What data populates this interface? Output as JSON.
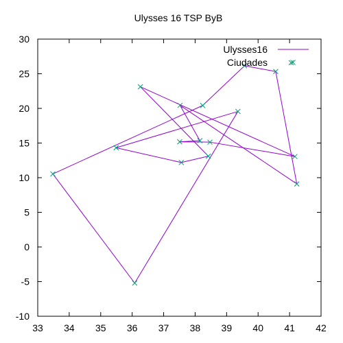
{
  "chart_data": {
    "type": "line",
    "title": "Ulysses 16 TSP ByB",
    "xlabel": "",
    "ylabel": "",
    "xlim": [
      33,
      42
    ],
    "ylim": [
      -10,
      30
    ],
    "xticks": [
      33,
      34,
      35,
      36,
      37,
      38,
      39,
      40,
      41,
      42
    ],
    "yticks": [
      -10,
      -5,
      0,
      5,
      10,
      15,
      20,
      25,
      30
    ],
    "grid": false,
    "legend_position": "top-right",
    "series": [
      {
        "name": "Ulysses16",
        "style": "lines",
        "color": "#9400d3",
        "points": [
          [
            38.24,
            20.42
          ],
          [
            39.57,
            26.15
          ],
          [
            40.56,
            25.32
          ],
          [
            41.23,
            9.1
          ],
          [
            37.52,
            20.44
          ],
          [
            38.15,
            15.35
          ],
          [
            37.51,
            15.17
          ],
          [
            38.47,
            15.13
          ],
          [
            41.17,
            13.05
          ],
          [
            36.26,
            23.12
          ],
          [
            38.42,
            13.11
          ],
          [
            37.56,
            12.19
          ],
          [
            35.49,
            14.32
          ],
          [
            39.36,
            19.56
          ],
          [
            36.08,
            -5.21
          ],
          [
            33.48,
            10.54
          ],
          [
            38.24,
            20.42
          ]
        ]
      },
      {
        "name": "Ciudades",
        "style": "points",
        "color": "#009e73",
        "points": [
          [
            38.24,
            20.42
          ],
          [
            39.57,
            26.15
          ],
          [
            40.56,
            25.32
          ],
          [
            36.26,
            23.12
          ],
          [
            33.48,
            10.54
          ],
          [
            37.56,
            12.19
          ],
          [
            38.42,
            13.11
          ],
          [
            37.52,
            20.44
          ],
          [
            41.23,
            9.1
          ],
          [
            41.17,
            13.05
          ],
          [
            36.08,
            -5.21
          ],
          [
            38.47,
            15.13
          ],
          [
            38.15,
            15.35
          ],
          [
            37.51,
            15.17
          ],
          [
            35.49,
            14.32
          ],
          [
            39.36,
            19.56
          ],
          [
            41.05,
            26.6
          ]
        ]
      }
    ]
  }
}
